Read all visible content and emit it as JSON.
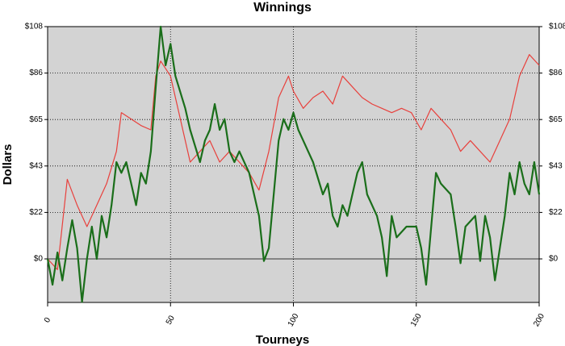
{
  "chart_data": {
    "type": "line",
    "title": "Winnings",
    "x_label": "Tourneys",
    "y_label": "Dollars",
    "xlim": [
      0,
      200
    ],
    "xticks": [
      0,
      50,
      100,
      150,
      200
    ],
    "ylim": [
      -20.25,
      108
    ],
    "yticks": [
      {
        "value": 0,
        "label": "$0"
      },
      {
        "value": 21.6,
        "label": "$22"
      },
      {
        "value": 43.2,
        "label": "$43"
      },
      {
        "value": 64.8,
        "label": "$65"
      },
      {
        "value": 86.4,
        "label": "$86"
      },
      {
        "value": 108,
        "label": "$108"
      }
    ],
    "grid": true,
    "background": "#d3d3d3",
    "series": [
      {
        "color": "#e8403c",
        "x": [
          0,
          4,
          8,
          12,
          16,
          20,
          24,
          28,
          30,
          34,
          38,
          42,
          44,
          46,
          50,
          54,
          58,
          62,
          66,
          70,
          74,
          78,
          82,
          86,
          90,
          94,
          98,
          100,
          104,
          108,
          112,
          116,
          120,
          124,
          128,
          132,
          136,
          140,
          144,
          148,
          152,
          156,
          160,
          164,
          168,
          172,
          176,
          180,
          184,
          188,
          192,
          196,
          200
        ],
        "values": [
          0,
          -5,
          37,
          25,
          15,
          25,
          35,
          50,
          68,
          65,
          62,
          60,
          85,
          92,
          85,
          65,
          45,
          50,
          55,
          45,
          50,
          45,
          40,
          32,
          50,
          75,
          85,
          78,
          70,
          75,
          78,
          72,
          85,
          80,
          75,
          72,
          70,
          68,
          70,
          68,
          60,
          70,
          65,
          60,
          50,
          55,
          50,
          45,
          55,
          65,
          85,
          95,
          90
        ]
      },
      {
        "color": "#1a6e1a",
        "x": [
          0,
          2,
          4,
          6,
          8,
          10,
          12,
          14,
          16,
          18,
          20,
          22,
          24,
          26,
          28,
          30,
          32,
          34,
          36,
          38,
          40,
          42,
          44,
          46,
          48,
          50,
          52,
          56,
          58,
          62,
          64,
          66,
          68,
          70,
          72,
          74,
          76,
          78,
          82,
          86,
          88,
          90,
          92,
          94,
          96,
          98,
          100,
          102,
          104,
          108,
          112,
          114,
          116,
          118,
          120,
          122,
          126,
          128,
          130,
          134,
          136,
          138,
          140,
          142,
          146,
          150,
          152,
          154,
          158,
          160,
          164,
          166,
          168,
          170,
          174,
          176,
          178,
          180,
          182,
          186,
          188,
          190,
          192,
          194,
          196,
          198,
          200
        ],
        "values": [
          0,
          -12,
          3,
          -10,
          5,
          18,
          5,
          -20,
          0,
          15,
          0,
          20,
          10,
          25,
          45,
          40,
          45,
          35,
          25,
          40,
          35,
          50,
          80,
          108,
          90,
          100,
          85,
          70,
          60,
          45,
          55,
          60,
          72,
          60,
          65,
          50,
          45,
          50,
          40,
          20,
          -1,
          5,
          30,
          55,
          65,
          60,
          68,
          60,
          55,
          45,
          30,
          35,
          20,
          15,
          25,
          20,
          40,
          45,
          30,
          20,
          10,
          -8,
          20,
          10,
          15,
          15,
          5,
          -12,
          40,
          35,
          30,
          15,
          -2,
          15,
          20,
          -1,
          20,
          10,
          -10,
          20,
          40,
          30,
          45,
          35,
          30,
          45,
          30
        ]
      }
    ]
  }
}
